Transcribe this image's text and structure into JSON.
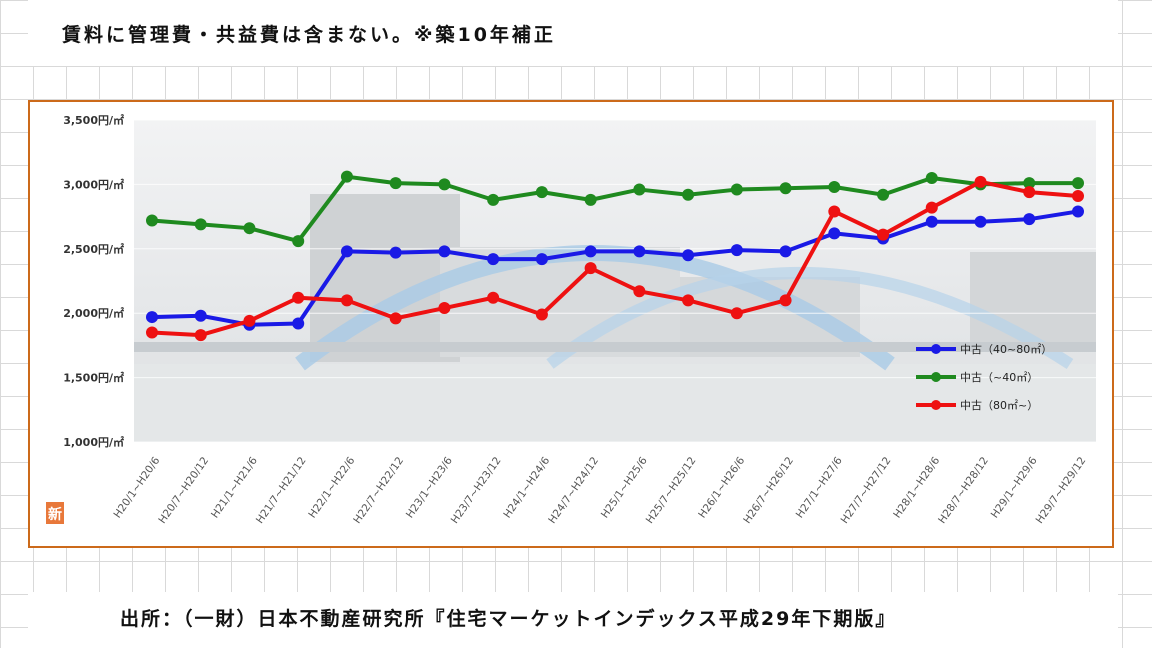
{
  "header": {
    "note": "賃料に管理費・共益費は含まない。※築10年補正"
  },
  "footer": {
    "source": "出所：（一財）日本不動産研究所『住宅マーケットインデックス平成29年下期版』"
  },
  "badge": {
    "text": "新"
  },
  "chart_data": {
    "type": "line",
    "y_unit": "円/㎡",
    "ylim": [
      1000,
      3500
    ],
    "yticks": [
      "3,500円/㎡",
      "3,000円/㎡",
      "2,500円/㎡",
      "2,000円/㎡",
      "1,500円/㎡",
      "1,000円/㎡"
    ],
    "categories": [
      "H20/1~H20/6",
      "H20/7~H20/12",
      "H21/1~H21/6",
      "H21/7~H21/12",
      "H22/1~H22/6",
      "H22/7~H22/12",
      "H23/1~H23/6",
      "H23/7~H23/12",
      "H24/1~H24/6",
      "H24/7~H24/12",
      "H25/1~H25/6",
      "H25/7~H25/12",
      "H26/1~H26/6",
      "H26/7~H26/12",
      "H27/1~H27/6",
      "H27/7~H27/12",
      "H28/1~H28/6",
      "H28/7~H28/12",
      "H29/1~H29/6",
      "H29/7~H29/12"
    ],
    "legend_position": "right",
    "series": [
      {
        "name": "中古（40~80㎡）",
        "color": "#1a1ae6",
        "values": [
          1970,
          1980,
          1910,
          1920,
          2480,
          2470,
          2480,
          2420,
          2420,
          2480,
          2480,
          2450,
          2490,
          2480,
          2620,
          2580,
          2710,
          2710,
          2730,
          2790
        ]
      },
      {
        "name": "中古（~40㎡）",
        "color": "#1f8a1f",
        "values": [
          2720,
          2690,
          2660,
          2560,
          3060,
          3010,
          3000,
          2880,
          2940,
          2880,
          2960,
          2920,
          2960,
          2970,
          2980,
          2920,
          3050,
          3000,
          3010,
          3010
        ]
      },
      {
        "name": "中古（80㎡~）",
        "color": "#ee1111",
        "values": [
          1850,
          1830,
          1940,
          2120,
          2100,
          1960,
          2040,
          2120,
          1990,
          2350,
          2170,
          2100,
          2000,
          2100,
          2790,
          2610,
          2820,
          3020,
          2940,
          2910
        ]
      }
    ]
  }
}
